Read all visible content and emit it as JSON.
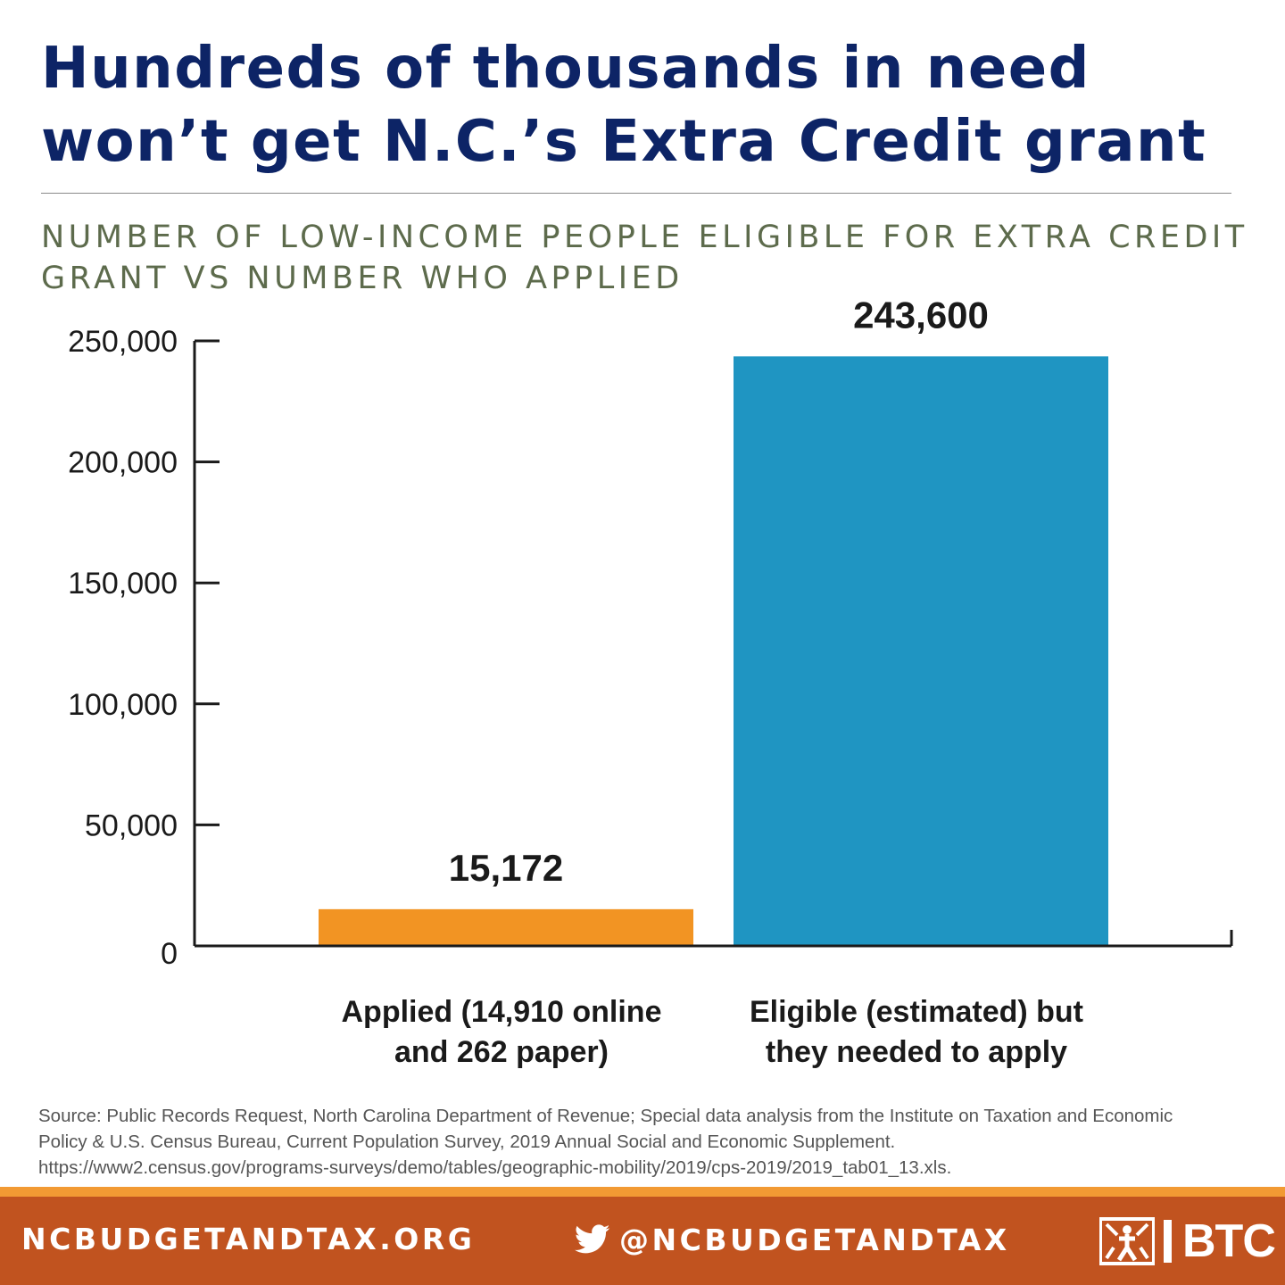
{
  "header": {
    "title_lines": [
      "Hundreds of thousands in need",
      "won’t get N.C.’s Extra Credit grant"
    ],
    "subtitle_lines": [
      "NUMBER OF LOW-INCOME PEOPLE ELIGIBLE FOR EXTRA CREDIT",
      "GRANT VS NUMBER WHO APPLIED"
    ]
  },
  "chart_data": {
    "type": "bar",
    "title": "NUMBER OF LOW-INCOME PEOPLE ELIGIBLE FOR EXTRA CREDIT GRANT VS NUMBER WHO APPLIED",
    "categories": [
      [
        "Applied (14,910 online",
        "and 262 paper)"
      ],
      [
        "Eligible (estimated) but",
        "they needed to apply"
      ]
    ],
    "values": [
      15172,
      243600
    ],
    "value_labels": [
      "15,172",
      "243,600"
    ],
    "colors": [
      "#f29423",
      "#1f95c2"
    ],
    "ylim": [
      0,
      250000
    ],
    "yticks": [
      0,
      50000,
      100000,
      150000,
      200000,
      250000
    ],
    "ytick_labels": [
      "0",
      "50,000",
      "100,000",
      "150,000",
      "200,000",
      "250,000"
    ],
    "xlabel": "",
    "ylabel": "",
    "grid": false,
    "legend": "none"
  },
  "source": {
    "lines": [
      "Source: Public Records Request, North Carolina Department of Revenue; Special data analysis from the Institute on Taxation and Economic",
      "Policy & U.S. Census Bureau, Current Population Survey, 2019 Annual Social and Economic Supplement.",
      "https://www2.census.gov/programs-surveys/demo/tables/geographic-mobility/2019/cps-2019/2019_tab01_13.xls."
    ]
  },
  "footer": {
    "website": "NCBUDGETANDTAX.ORG",
    "twitter_handle": "@NCBUDGETANDTAX",
    "twitter_icon": "twitter-bird-icon",
    "logo_text": "BTC",
    "logo_icon": "btc-figures-logo-icon",
    "colors": {
      "band": "#c1531f",
      "stripe": "#f29a33",
      "text": "#ffffff"
    }
  }
}
